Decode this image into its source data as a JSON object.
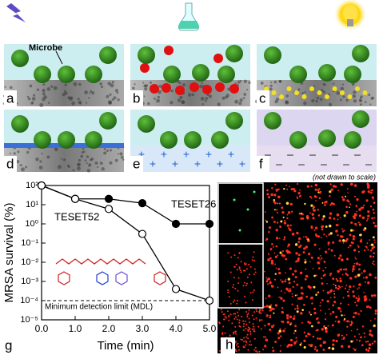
{
  "figure": {
    "microbe_label": "Microbe",
    "scale_note": "(not drawn to scale)",
    "panel_labels": [
      "a",
      "b",
      "c",
      "d",
      "e",
      "f",
      "g",
      "h"
    ]
  },
  "chart_data": {
    "type": "line",
    "xlabel": "Time (min)",
    "ylabel": "MRSA survival (%)",
    "yscale": "log",
    "x": [
      0,
      1,
      2,
      3,
      4,
      5
    ],
    "series": [
      {
        "name": "TESET26",
        "color": "#000000",
        "marker": "filled",
        "values": [
          100,
          20,
          20,
          12,
          1,
          1
        ]
      },
      {
        "name": "TESET52",
        "color": "#000000",
        "marker": "open",
        "values": [
          100,
          20,
          6,
          0.3,
          0.0004,
          0.0001
        ]
      }
    ],
    "annotation": "Minimum detection limit (MDL)",
    "mdl": 0.0001,
    "xlim": [
      0,
      5
    ],
    "xticks": [
      {
        "value": 0,
        "label": "0.0"
      },
      {
        "value": 1,
        "label": "1.0"
      },
      {
        "value": 2,
        "label": "2.0"
      },
      {
        "value": 3,
        "label": "3.0"
      },
      {
        "value": 4,
        "label": "4.0"
      },
      {
        "value": 5,
        "label": "5.0"
      }
    ],
    "ylim": [
      1e-05,
      100
    ],
    "yticks": [
      {
        "value": 100,
        "label": "10²"
      },
      {
        "value": 10,
        "label": "10¹"
      },
      {
        "value": 1,
        "label": "10⁰"
      },
      {
        "value": 0.1,
        "label": "10⁻¹"
      },
      {
        "value": 0.01,
        "label": "10⁻²"
      },
      {
        "value": 0.001,
        "label": "10⁻³"
      },
      {
        "value": 0.0001,
        "label": "10⁻⁴"
      },
      {
        "value": 1e-05,
        "label": "10⁻⁵"
      }
    ]
  }
}
